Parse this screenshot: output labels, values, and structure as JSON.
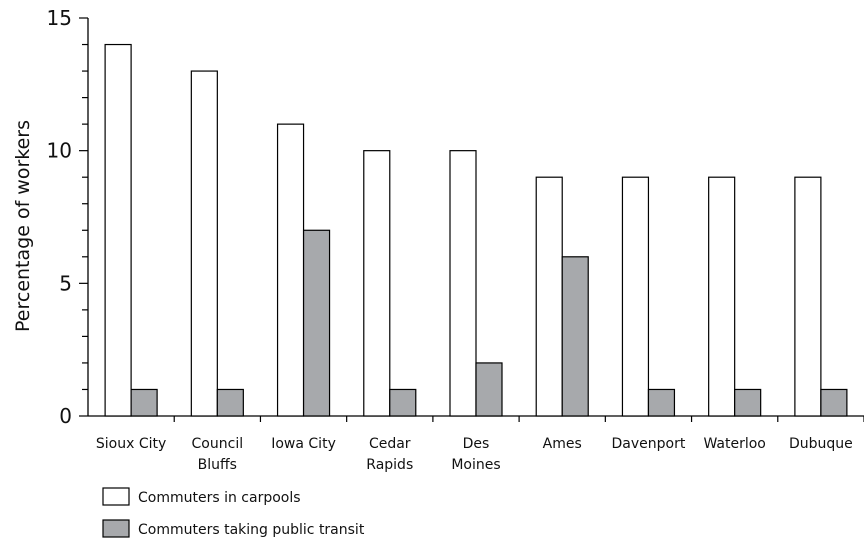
{
  "chart_data": {
    "type": "bar",
    "ylabel": "Percentage of workers",
    "xlabel": "",
    "ylim": [
      0,
      15
    ],
    "yticks": [
      0,
      5,
      10,
      15
    ],
    "y_minor_step": 1,
    "grid": false,
    "legend_position": "bottom-left",
    "categories": [
      [
        "Sioux City"
      ],
      [
        "Council",
        "Bluffs"
      ],
      [
        "Iowa City"
      ],
      [
        "Cedar",
        "Rapids"
      ],
      [
        "Des",
        "Moines"
      ],
      [
        "Ames"
      ],
      [
        "Davenport"
      ],
      [
        "Waterloo"
      ],
      [
        "Dubuque"
      ]
    ],
    "series": [
      {
        "name": "Commuters in carpools",
        "color": "#ffffff",
        "values": [
          14,
          13,
          11,
          10,
          10,
          9,
          9,
          9,
          9
        ]
      },
      {
        "name": "Commuters taking public transit",
        "color": "#a7a9ac",
        "values": [
          1,
          1,
          7,
          1,
          2,
          6,
          1,
          1,
          1
        ]
      }
    ]
  }
}
